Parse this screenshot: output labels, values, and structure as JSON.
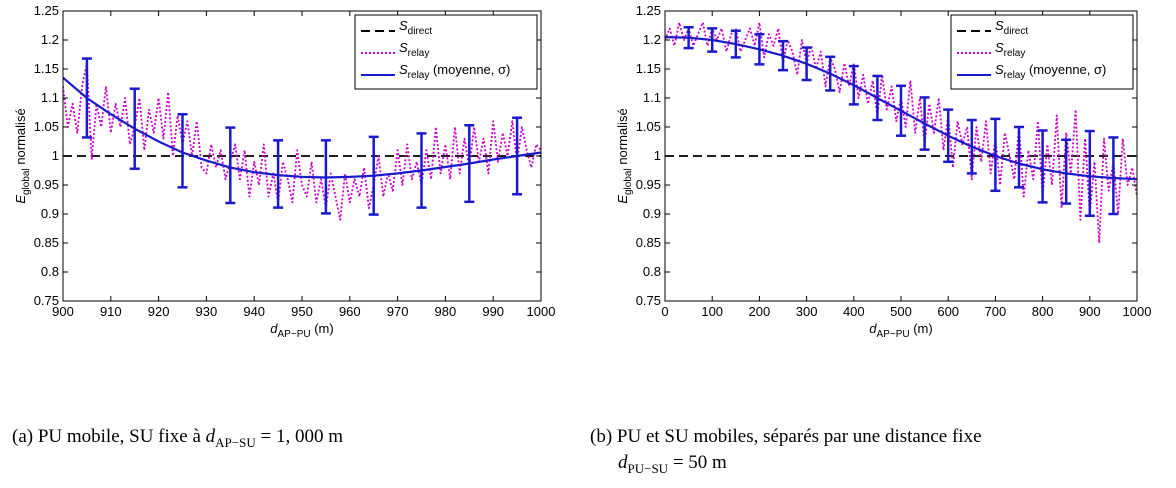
{
  "chart_data": [
    {
      "type": "line",
      "ylabel_main": "E",
      "ylabel_sub": "global",
      "ylabel_rest": " normalisé",
      "xlabel_main": "d",
      "xlabel_sub": "AP−PU",
      "xlabel_rest": " (m)",
      "xlim": [
        900,
        1000
      ],
      "ylim": [
        0.75,
        1.25
      ],
      "xticks": [
        900,
        910,
        920,
        930,
        940,
        950,
        960,
        970,
        980,
        990,
        1000
      ],
      "yticks": [
        0.75,
        0.8,
        0.85,
        0.9,
        0.95,
        1,
        1.05,
        1.1,
        1.15,
        1.2,
        1.25
      ],
      "legend": {
        "position": "top-right",
        "entries": [
          {
            "main": "S",
            "sub": "direct",
            "rest": "",
            "style": "dashed",
            "color": "#000000"
          },
          {
            "main": "S",
            "sub": "relay",
            "rest": "",
            "style": "dotted",
            "color": "#cc00cc"
          },
          {
            "main": "S",
            "sub": "relay",
            "rest": " (moyenne, σ)",
            "style": "solid",
            "color": "#1a1acc"
          }
        ]
      },
      "series": [
        {
          "style": "dashed",
          "color": "#000000",
          "x": [
            900,
            1000
          ],
          "y": [
            1.0,
            1.0
          ]
        },
        {
          "style": "dotted",
          "color": "#cc00cc",
          "x": [
            900,
            901,
            902,
            903,
            904,
            905,
            906,
            907,
            908,
            909,
            910,
            911,
            912,
            913,
            914,
            915,
            916,
            917,
            918,
            919,
            920,
            921,
            922,
            923,
            924,
            925,
            926,
            927,
            928,
            929,
            930,
            931,
            932,
            933,
            934,
            935,
            936,
            937,
            938,
            939,
            940,
            941,
            942,
            943,
            944,
            945,
            946,
            947,
            948,
            949,
            950,
            951,
            952,
            953,
            954,
            955,
            956,
            957,
            958,
            959,
            960,
            961,
            962,
            963,
            964,
            965,
            966,
            967,
            968,
            969,
            970,
            971,
            972,
            973,
            974,
            975,
            976,
            977,
            978,
            979,
            980,
            981,
            982,
            983,
            984,
            985,
            986,
            987,
            988,
            989,
            990,
            991,
            992,
            993,
            994,
            995,
            996,
            997,
            998,
            999,
            1000
          ],
          "y": [
            1.12,
            1.05,
            1.09,
            1.04,
            1.12,
            1.16,
            0.995,
            1.09,
            1.05,
            1.12,
            1.04,
            1.09,
            1.05,
            1.1,
            1.02,
            1.05,
            1.1,
            1.01,
            1.08,
            1.04,
            1.1,
            1.03,
            1.11,
            1.0,
            1.07,
            1.02,
            1.06,
            1.0,
            1.06,
            0.98,
            0.97,
            1.02,
            0.98,
            1.01,
            0.96,
            0.99,
            1.02,
            0.96,
            1.01,
            0.93,
            0.99,
            0.95,
            1.02,
            0.93,
            0.97,
            0.92,
            0.99,
            0.96,
            0.92,
            1.01,
            0.95,
            0.93,
            0.99,
            0.92,
            0.96,
            0.91,
            0.97,
            0.93,
            0.89,
            0.97,
            0.92,
            0.96,
            0.93,
            0.98,
            0.91,
            0.95,
            1.0,
            0.93,
            0.97,
            0.94,
            1.01,
            0.95,
            1.02,
            0.96,
            0.99,
            0.95,
            1.01,
            0.96,
            1.05,
            0.97,
            1.02,
            0.96,
            1.05,
            0.97,
            1.03,
            0.98,
            1.05,
            0.99,
            1.03,
            0.97,
            1.06,
            0.99,
            1.04,
            1.0,
            1.06,
            0.99,
            1.05,
            1.01,
            0.98,
            1.02,
            1.01
          ]
        },
        {
          "style": "solid",
          "color": "#1a1acc",
          "x": [
            900,
            905,
            910,
            915,
            920,
            925,
            930,
            935,
            940,
            945,
            950,
            955,
            960,
            965,
            970,
            975,
            980,
            985,
            990,
            995,
            1000
          ],
          "y": [
            1.135,
            1.1,
            1.072,
            1.047,
            1.025,
            1.006,
            0.992,
            0.98,
            0.972,
            0.967,
            0.964,
            0.963,
            0.964,
            0.966,
            0.97,
            0.975,
            0.981,
            0.987,
            0.994,
            1.0,
            1.006
          ]
        },
        {
          "style": "errorbar",
          "color": "#1a1acc",
          "x": [
            905,
            915,
            925,
            935,
            945,
            955,
            965,
            975,
            985,
            995
          ],
          "y": [
            1.1,
            1.047,
            1.009,
            0.984,
            0.969,
            0.964,
            0.966,
            0.975,
            0.987,
            1.0
          ],
          "err": [
            0.068,
            0.069,
            0.063,
            0.065,
            0.058,
            0.063,
            0.067,
            0.064,
            0.066,
            0.066
          ]
        }
      ]
    },
    {
      "type": "line",
      "ylabel_main": "E",
      "ylabel_sub": "global",
      "ylabel_rest": " normalisé",
      "xlabel_main": "d",
      "xlabel_sub": "AP−PU",
      "xlabel_rest": " (m)",
      "xlim": [
        0,
        1000
      ],
      "ylim": [
        0.75,
        1.25
      ],
      "xticks": [
        0,
        100,
        200,
        300,
        400,
        500,
        600,
        700,
        800,
        900,
        1000
      ],
      "yticks": [
        0.75,
        0.8,
        0.85,
        0.9,
        0.95,
        1,
        1.05,
        1.1,
        1.15,
        1.2,
        1.25
      ],
      "legend": {
        "position": "top-right",
        "entries": [
          {
            "main": "S",
            "sub": "direct",
            "rest": "",
            "style": "dashed",
            "color": "#000000"
          },
          {
            "main": "S",
            "sub": "relay",
            "rest": "",
            "style": "dotted",
            "color": "#cc00cc"
          },
          {
            "main": "S",
            "sub": "relay",
            "rest": " (moyenne, σ)",
            "style": "solid",
            "color": "#1a1acc"
          }
        ]
      },
      "series": [
        {
          "style": "dashed",
          "color": "#000000",
          "x": [
            0,
            1000
          ],
          "y": [
            1.0,
            1.0
          ]
        },
        {
          "style": "dotted",
          "color": "#cc00cc",
          "x": [
            0,
            10,
            20,
            30,
            40,
            50,
            60,
            70,
            80,
            90,
            100,
            110,
            120,
            130,
            140,
            150,
            160,
            170,
            180,
            190,
            200,
            210,
            220,
            230,
            240,
            250,
            260,
            270,
            280,
            290,
            300,
            310,
            320,
            330,
            340,
            350,
            360,
            370,
            380,
            390,
            400,
            410,
            420,
            430,
            440,
            450,
            460,
            470,
            480,
            490,
            500,
            510,
            520,
            530,
            540,
            550,
            560,
            570,
            580,
            590,
            600,
            610,
            620,
            630,
            640,
            650,
            660,
            670,
            680,
            690,
            700,
            710,
            720,
            730,
            740,
            750,
            760,
            770,
            780,
            790,
            800,
            810,
            820,
            830,
            840,
            850,
            860,
            870,
            880,
            890,
            900,
            910,
            920,
            930,
            940,
            950,
            960,
            970,
            980,
            990,
            1000
          ],
          "y": [
            1.2,
            1.22,
            1.19,
            1.23,
            1.2,
            1.22,
            1.19,
            1.21,
            1.23,
            1.19,
            1.22,
            1.2,
            1.22,
            1.18,
            1.21,
            1.22,
            1.18,
            1.2,
            1.22,
            1.19,
            1.23,
            1.17,
            1.21,
            1.19,
            1.22,
            1.16,
            1.2,
            1.18,
            1.14,
            1.2,
            1.16,
            1.19,
            1.15,
            1.18,
            1.12,
            1.17,
            1.15,
            1.11,
            1.16,
            1.12,
            1.16,
            1.1,
            1.14,
            1.09,
            1.13,
            1.07,
            1.14,
            1.08,
            1.12,
            1.06,
            1.1,
            1.05,
            1.13,
            1.04,
            1.1,
            1.02,
            1.09,
            1.04,
            1.1,
            1.01,
            1.07,
            0.98,
            1.06,
            1.02,
            1.05,
            0.96,
            1.05,
            0.99,
            1.06,
            0.97,
            1.03,
            0.95,
            1.04,
            1.0,
            0.96,
            1.05,
            0.93,
            1.01,
            0.96,
            1.06,
            0.93,
            1.02,
            0.95,
            1.07,
            0.91,
            1.04,
            0.97,
            1.08,
            0.89,
            1.03,
            0.9,
            0.99,
            0.85,
            1.03,
            0.94,
            0.99,
            0.9,
            1.03,
            0.95,
            0.98,
            0.93
          ]
        },
        {
          "style": "solid",
          "color": "#1a1acc",
          "x": [
            0,
            50,
            100,
            150,
            200,
            250,
            300,
            350,
            400,
            450,
            500,
            550,
            600,
            650,
            700,
            750,
            800,
            850,
            900,
            950,
            1000
          ],
          "y": [
            1.205,
            1.204,
            1.2,
            1.193,
            1.184,
            1.173,
            1.159,
            1.142,
            1.122,
            1.1,
            1.078,
            1.056,
            1.035,
            1.016,
            1.0,
            0.987,
            0.977,
            0.97,
            0.965,
            0.962,
            0.96
          ]
        },
        {
          "style": "errorbar",
          "color": "#1a1acc",
          "x": [
            50,
            100,
            150,
            200,
            250,
            300,
            350,
            400,
            450,
            500,
            550,
            600,
            650,
            700,
            750,
            800,
            850,
            900,
            950
          ],
          "y": [
            1.204,
            1.2,
            1.193,
            1.184,
            1.173,
            1.159,
            1.142,
            1.122,
            1.1,
            1.078,
            1.056,
            1.035,
            1.016,
            1.002,
            0.998,
            0.982,
            0.973,
            0.97,
            0.966
          ],
          "err": [
            0.018,
            0.02,
            0.023,
            0.026,
            0.025,
            0.028,
            0.029,
            0.033,
            0.038,
            0.043,
            0.045,
            0.045,
            0.046,
            0.062,
            0.052,
            0.062,
            0.055,
            0.073,
            0.066
          ]
        }
      ]
    }
  ],
  "captions": {
    "a_prefix": "(a) PU mobile, SU fixe à ",
    "a_var": "d",
    "a_sub": "AP−SU",
    "a_suffix": " = 1, 000 m",
    "b_line1": "(b) PU et SU mobiles, séparés par une distance fixe",
    "b_var": "d",
    "b_sub": "PU−SU",
    "b_suffix": " = 50 m"
  }
}
